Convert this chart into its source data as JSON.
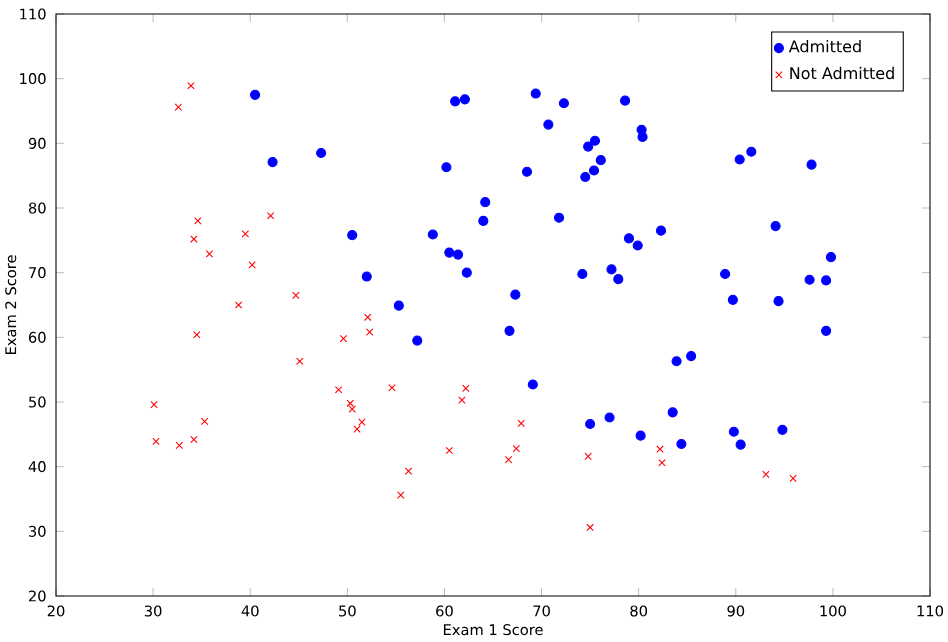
{
  "chart_data": {
    "type": "scatter",
    "xlabel": "Exam 1 Score",
    "ylabel": "Exam 2 Score",
    "xlim": [
      20,
      110
    ],
    "ylim": [
      20,
      110
    ],
    "xticks": [
      20,
      30,
      40,
      50,
      60,
      70,
      80,
      90,
      100,
      110
    ],
    "yticks": [
      20,
      30,
      40,
      50,
      60,
      70,
      80,
      90,
      100,
      110
    ],
    "legend": "top right",
    "series": [
      {
        "name": "Admitted",
        "color": "#0000ff",
        "marker": "circle",
        "x": [
          60.2,
          79.0,
          61.1,
          75.0,
          76.1,
          84.4,
          82.3,
          69.4,
          70.7,
          69.1,
          77.0,
          89.7,
          77.9,
          62.3,
          80.2,
          61.4,
          85.4,
          52.0,
          64.2,
          83.9,
          94.4,
          77.2,
          97.8,
          62.1,
          91.6,
          79.9,
          99.3,
          90.5,
          97.6,
          74.2,
          71.8,
          75.4,
          40.5,
          80.3,
          66.7,
          64.0,
          72.3,
          60.5,
          58.8,
          99.8,
          47.3,
          50.5,
          88.9,
          94.8,
          67.3,
          57.2,
          80.4,
          68.5,
          75.5,
          78.6,
          94.1,
          90.4,
          74.5,
          89.8,
          83.5,
          42.3,
          99.3,
          55.3,
          74.8
        ],
        "values": [
          86.3,
          75.3,
          96.5,
          46.6,
          87.4,
          43.5,
          76.5,
          97.7,
          92.9,
          52.7,
          47.6,
          65.8,
          69.0,
          70.0,
          44.8,
          72.8,
          57.1,
          69.4,
          80.9,
          56.3,
          65.6,
          70.5,
          86.7,
          96.8,
          88.7,
          74.2,
          61.0,
          43.4,
          68.9,
          69.8,
          78.5,
          85.8,
          97.5,
          92.1,
          61.0,
          78.0,
          96.2,
          73.1,
          75.9,
          72.4,
          88.5,
          75.8,
          69.8,
          45.7,
          66.6,
          59.5,
          91.0,
          85.6,
          90.4,
          96.6,
          77.2,
          87.5,
          84.8,
          45.4,
          48.4,
          87.1,
          68.8,
          64.9,
          89.5
        ]
      },
      {
        "name": "Not Admitted",
        "color": "#ff0000",
        "marker": "cross",
        "x": [
          34.6,
          30.3,
          35.8,
          45.1,
          95.9,
          75.0,
          39.5,
          67.9,
          67.4,
          50.5,
          34.2,
          93.1,
          61.8,
          38.8,
          52.1,
          40.2,
          54.6,
          33.9,
          74.8,
          34.2,
          51.5,
          82.4,
          51.0,
          62.2,
          34.5,
          50.3,
          49.6,
          32.6,
          35.3,
          56.3,
          30.1,
          44.7,
          66.6,
          49.1,
          32.7,
          60.5,
          82.2,
          42.1,
          52.3,
          55.5
        ],
        "values": [
          78.0,
          43.9,
          72.9,
          56.3,
          38.2,
          30.6,
          76.0,
          46.7,
          42.8,
          48.9,
          44.2,
          38.8,
          50.3,
          65.0,
          63.1,
          71.2,
          52.2,
          98.9,
          41.6,
          75.2,
          46.9,
          40.6,
          45.8,
          52.1,
          60.4,
          49.8,
          59.8,
          95.6,
          47.0,
          39.3,
          49.6,
          66.5,
          41.1,
          51.9,
          43.3,
          42.5,
          42.7,
          78.8,
          60.8,
          35.6
        ]
      }
    ]
  }
}
